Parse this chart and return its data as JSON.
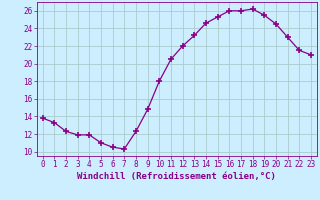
{
  "x": [
    0,
    1,
    2,
    3,
    4,
    5,
    6,
    7,
    8,
    9,
    10,
    11,
    12,
    13,
    14,
    15,
    16,
    17,
    18,
    19,
    20,
    21,
    22,
    23
  ],
  "y": [
    13.8,
    13.3,
    12.3,
    11.9,
    11.9,
    11.0,
    10.5,
    10.3,
    12.3,
    14.8,
    18.0,
    20.5,
    22.0,
    23.2,
    24.6,
    25.3,
    26.0,
    26.0,
    26.2,
    25.5,
    24.5,
    23.0,
    21.5,
    21.0
  ],
  "line_color": "#880088",
  "marker": "+",
  "marker_size": 4,
  "marker_lw": 1.2,
  "bg_color": "#cceeff",
  "grid_color": "#aacccc",
  "xlabel": "Windchill (Refroidissement éolien,°C)",
  "xlim": [
    -0.5,
    23.5
  ],
  "ylim": [
    9.5,
    27.0
  ],
  "yticks": [
    10,
    12,
    14,
    16,
    18,
    20,
    22,
    24,
    26
  ],
  "xticks": [
    0,
    1,
    2,
    3,
    4,
    5,
    6,
    7,
    8,
    9,
    10,
    11,
    12,
    13,
    14,
    15,
    16,
    17,
    18,
    19,
    20,
    21,
    22,
    23
  ],
  "tick_fontsize": 5.5,
  "xlabel_fontsize": 6.5
}
